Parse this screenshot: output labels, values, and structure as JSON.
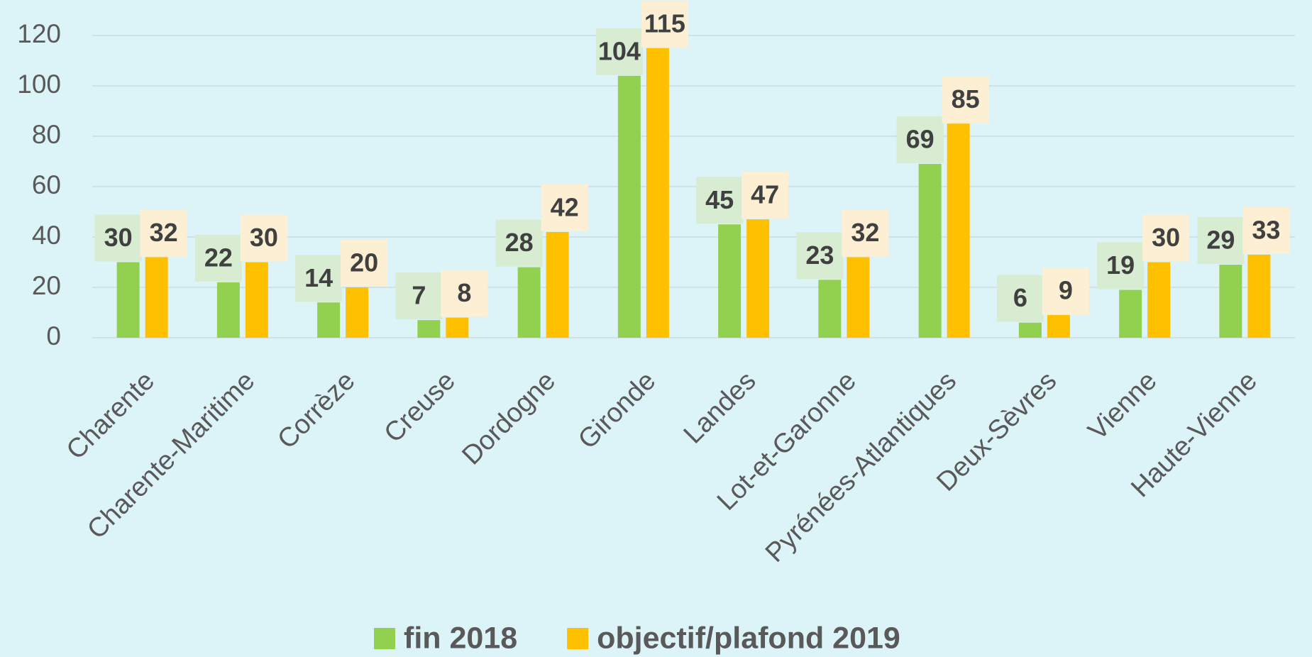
{
  "chart_data": {
    "type": "bar",
    "categories": [
      "Charente",
      "Charente-Maritime",
      "Corrèze",
      "Creuse",
      "Dordogne",
      "Gironde",
      "Landes",
      "Lot-et-Garonne",
      "Pyrénées-Atlantiques",
      "Deux-Sèvres",
      "Vienne",
      "Haute-Vienne"
    ],
    "series": [
      {
        "name": "fin 2018",
        "color": "#92d050",
        "values": [
          30,
          22,
          14,
          7,
          28,
          104,
          45,
          23,
          69,
          6,
          19,
          29
        ]
      },
      {
        "name": "objectif/plafond 2019",
        "color": "#ffc000",
        "values": [
          32,
          30,
          20,
          8,
          42,
          115,
          47,
          32,
          85,
          9,
          30,
          33
        ]
      }
    ],
    "ylim": [
      0,
      120
    ],
    "yticks": [
      0,
      20,
      40,
      60,
      80,
      100,
      120
    ],
    "grid": true,
    "legend": "bottom"
  }
}
